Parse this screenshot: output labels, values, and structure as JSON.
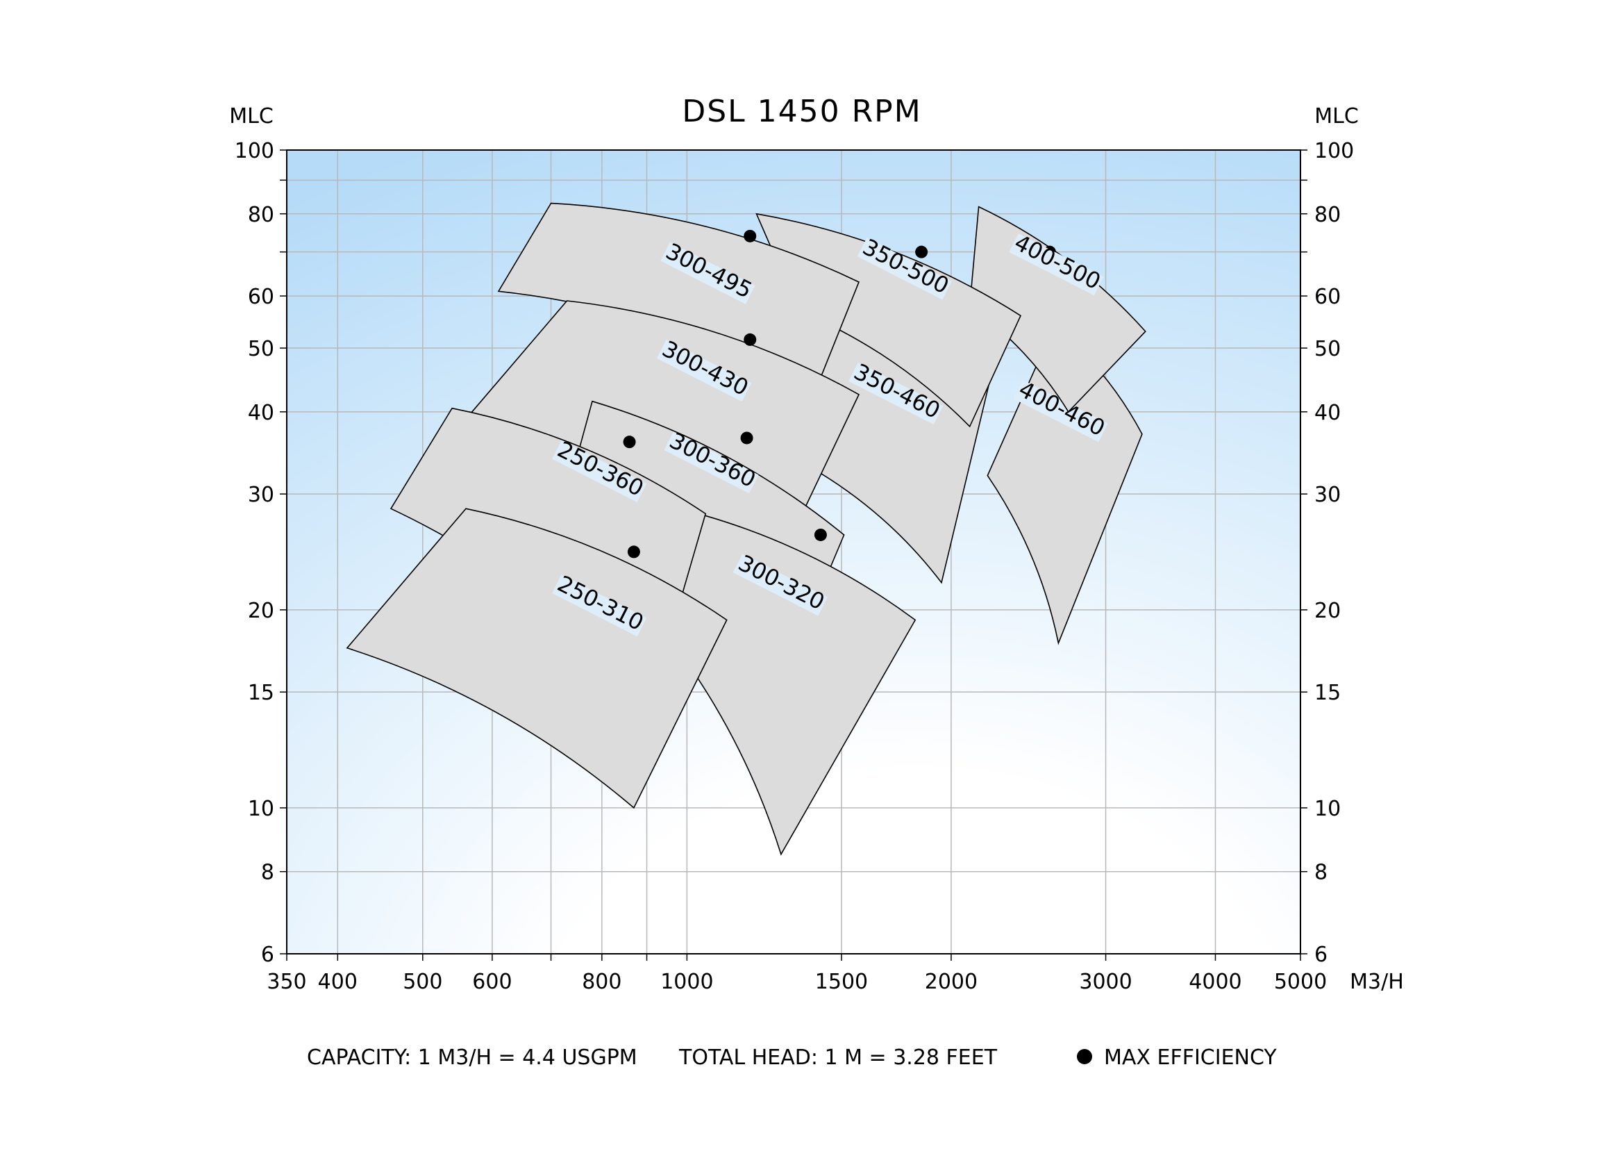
{
  "chart_data": {
    "type": "scatter",
    "title": "DSL 1450 RPM",
    "y_unit_left": "MLC",
    "y_unit_right": "MLC",
    "x_unit": "M3/H",
    "x_scale": "log",
    "y_scale": "log",
    "xlim": [
      350,
      5000
    ],
    "ylim": [
      6,
      100
    ],
    "grid": true,
    "x_ticks": [
      {
        "value": 350,
        "label": "350"
      },
      {
        "value": 400,
        "label": "400"
      },
      {
        "value": 500,
        "label": "500"
      },
      {
        "value": 600,
        "label": "600"
      },
      {
        "value": 700,
        "label": ""
      },
      {
        "value": 800,
        "label": "800"
      },
      {
        "value": 900,
        "label": ""
      },
      {
        "value": 1000,
        "label": "1000"
      },
      {
        "value": 1500,
        "label": "1500"
      },
      {
        "value": 2000,
        "label": "2000"
      },
      {
        "value": 3000,
        "label": "3000"
      },
      {
        "value": 4000,
        "label": "4000"
      },
      {
        "value": 5000,
        "label": "5000"
      }
    ],
    "y_ticks": [
      {
        "value": 6,
        "label": "6"
      },
      {
        "value": 8,
        "label": "8"
      },
      {
        "value": 10,
        "label": "10"
      },
      {
        "value": 15,
        "label": "15"
      },
      {
        "value": 20,
        "label": "20"
      },
      {
        "value": 30,
        "label": "30"
      },
      {
        "value": 40,
        "label": "40"
      },
      {
        "value": 50,
        "label": "50"
      },
      {
        "value": 60,
        "label": "60"
      },
      {
        "value": 70,
        "label": ""
      },
      {
        "value": 80,
        "label": "80"
      },
      {
        "value": 90,
        "label": ""
      },
      {
        "value": 100,
        "label": "100"
      }
    ],
    "regions": [
      {
        "name": "400-460",
        "label_at": [
          2650,
          39.5
        ],
        "max_efficiency": [
          2550,
          52
        ],
        "bl": [
          2200,
          32
        ],
        "tl": [
          2620,
          54
        ],
        "tr": [
          3300,
          37
        ],
        "br": [
          2650,
          17.8
        ]
      },
      {
        "name": "400-500",
        "label_at": [
          2620,
          66
        ],
        "max_efficiency": [
          2590,
          70
        ],
        "bl": [
          2100,
          58
        ],
        "tl": [
          2150,
          82
        ],
        "tr": [
          3330,
          53
        ],
        "br": [
          2720,
          40
        ]
      },
      {
        "name": "350-460",
        "label_at": [
          1720,
          42
        ],
        "max_efficiency": [
          1730,
          54.5
        ],
        "bl": [
          1380,
          33
        ],
        "tl": [
          1430,
          57
        ],
        "tr": [
          2230,
          46.5
        ],
        "br": [
          1950,
          22
        ]
      },
      {
        "name": "350-500",
        "label_at": [
          1760,
          65
        ],
        "max_efficiency": [
          1850,
          70
        ],
        "bl": [
          1340,
          57
        ],
        "tl": [
          1200,
          80
        ],
        "tr": [
          2400,
          56
        ],
        "br": [
          2100,
          38
        ]
      },
      {
        "name": "300-495",
        "label_at": [
          1050,
          64
        ],
        "max_efficiency": [
          1180,
          74
        ],
        "bl": [
          610,
          61
        ],
        "tl": [
          700,
          83
        ],
        "tr": [
          1570,
          63
        ],
        "br": [
          1400,
          43
        ]
      },
      {
        "name": "300-430",
        "label_at": [
          1040,
          45.5
        ],
        "max_efficiency": [
          1180,
          51.5
        ],
        "bl": [
          560,
          39
        ],
        "tl": [
          730,
          59
        ],
        "tr": [
          1570,
          42.5
        ],
        "br": [
          1200,
          20
        ]
      },
      {
        "name": "300-360",
        "label_at": [
          1060,
          33
        ],
        "max_efficiency": [
          1170,
          36.5
        ],
        "bl": [
          730,
          30
        ],
        "tl": [
          780,
          41.5
        ],
        "tr": [
          1510,
          26
        ],
        "br": [
          1270,
          15
        ]
      },
      {
        "name": "300-320",
        "label_at": [
          1270,
          21.5
        ],
        "max_efficiency": [
          1420,
          26
        ],
        "bl": [
          900,
          20
        ],
        "tl": [
          980,
          28.5
        ],
        "tr": [
          1820,
          19.3
        ],
        "br": [
          1280,
          8.5
        ]
      },
      {
        "name": "250-360",
        "label_at": [
          790,
          32
        ],
        "max_efficiency": [
          860,
          36
        ],
        "bl": [
          460,
          28.5
        ],
        "tl": [
          540,
          40.5
        ],
        "tr": [
          1050,
          28
        ],
        "br": [
          910,
          14.5
        ]
      },
      {
        "name": "250-310",
        "label_at": [
          790,
          20
        ],
        "max_efficiency": [
          870,
          24.5
        ],
        "bl": [
          410,
          17.5
        ],
        "tl": [
          560,
          28.5
        ],
        "tr": [
          1110,
          19.3
        ],
        "br": [
          870,
          10
        ]
      }
    ],
    "footer": {
      "capacity": "CAPACITY: 1 M3/H = 4.4 USGPM",
      "total_head": "TOTAL HEAD: 1 M = 3.28 FEET",
      "legend_label": "MAX EFFICIENCY"
    },
    "colors": {
      "region_fill": "#dcdcdc",
      "region_stroke": "#000000",
      "grid": "#b8b8b8",
      "bg_top": "#b5dbf8",
      "bg_bottom": "#ffffff",
      "label_bg": "#ddeefa"
    }
  }
}
